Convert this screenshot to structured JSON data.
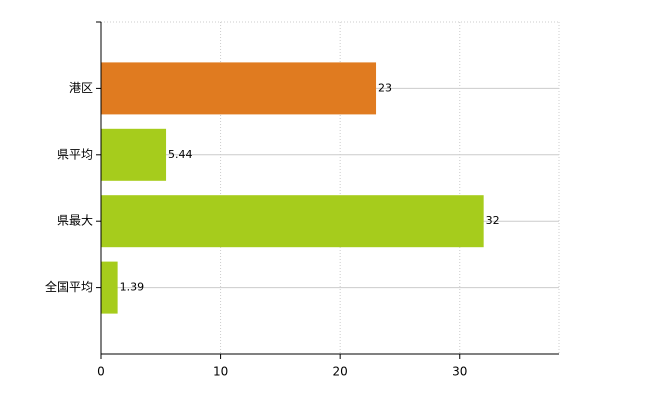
{
  "chart_data": {
    "type": "bar",
    "orientation": "horizontal",
    "categories": [
      "港区",
      "県平均",
      "県最大",
      "全国平均"
    ],
    "values": [
      23,
      5.44,
      32,
      1.39
    ],
    "colors": [
      "#e07b20",
      "#a6cc1c",
      "#a6cc1c",
      "#a6cc1c"
    ],
    "xlim": [
      0,
      38.3
    ],
    "xticks": [
      0,
      10,
      20,
      30
    ],
    "grid": true,
    "data_labels": true
  }
}
